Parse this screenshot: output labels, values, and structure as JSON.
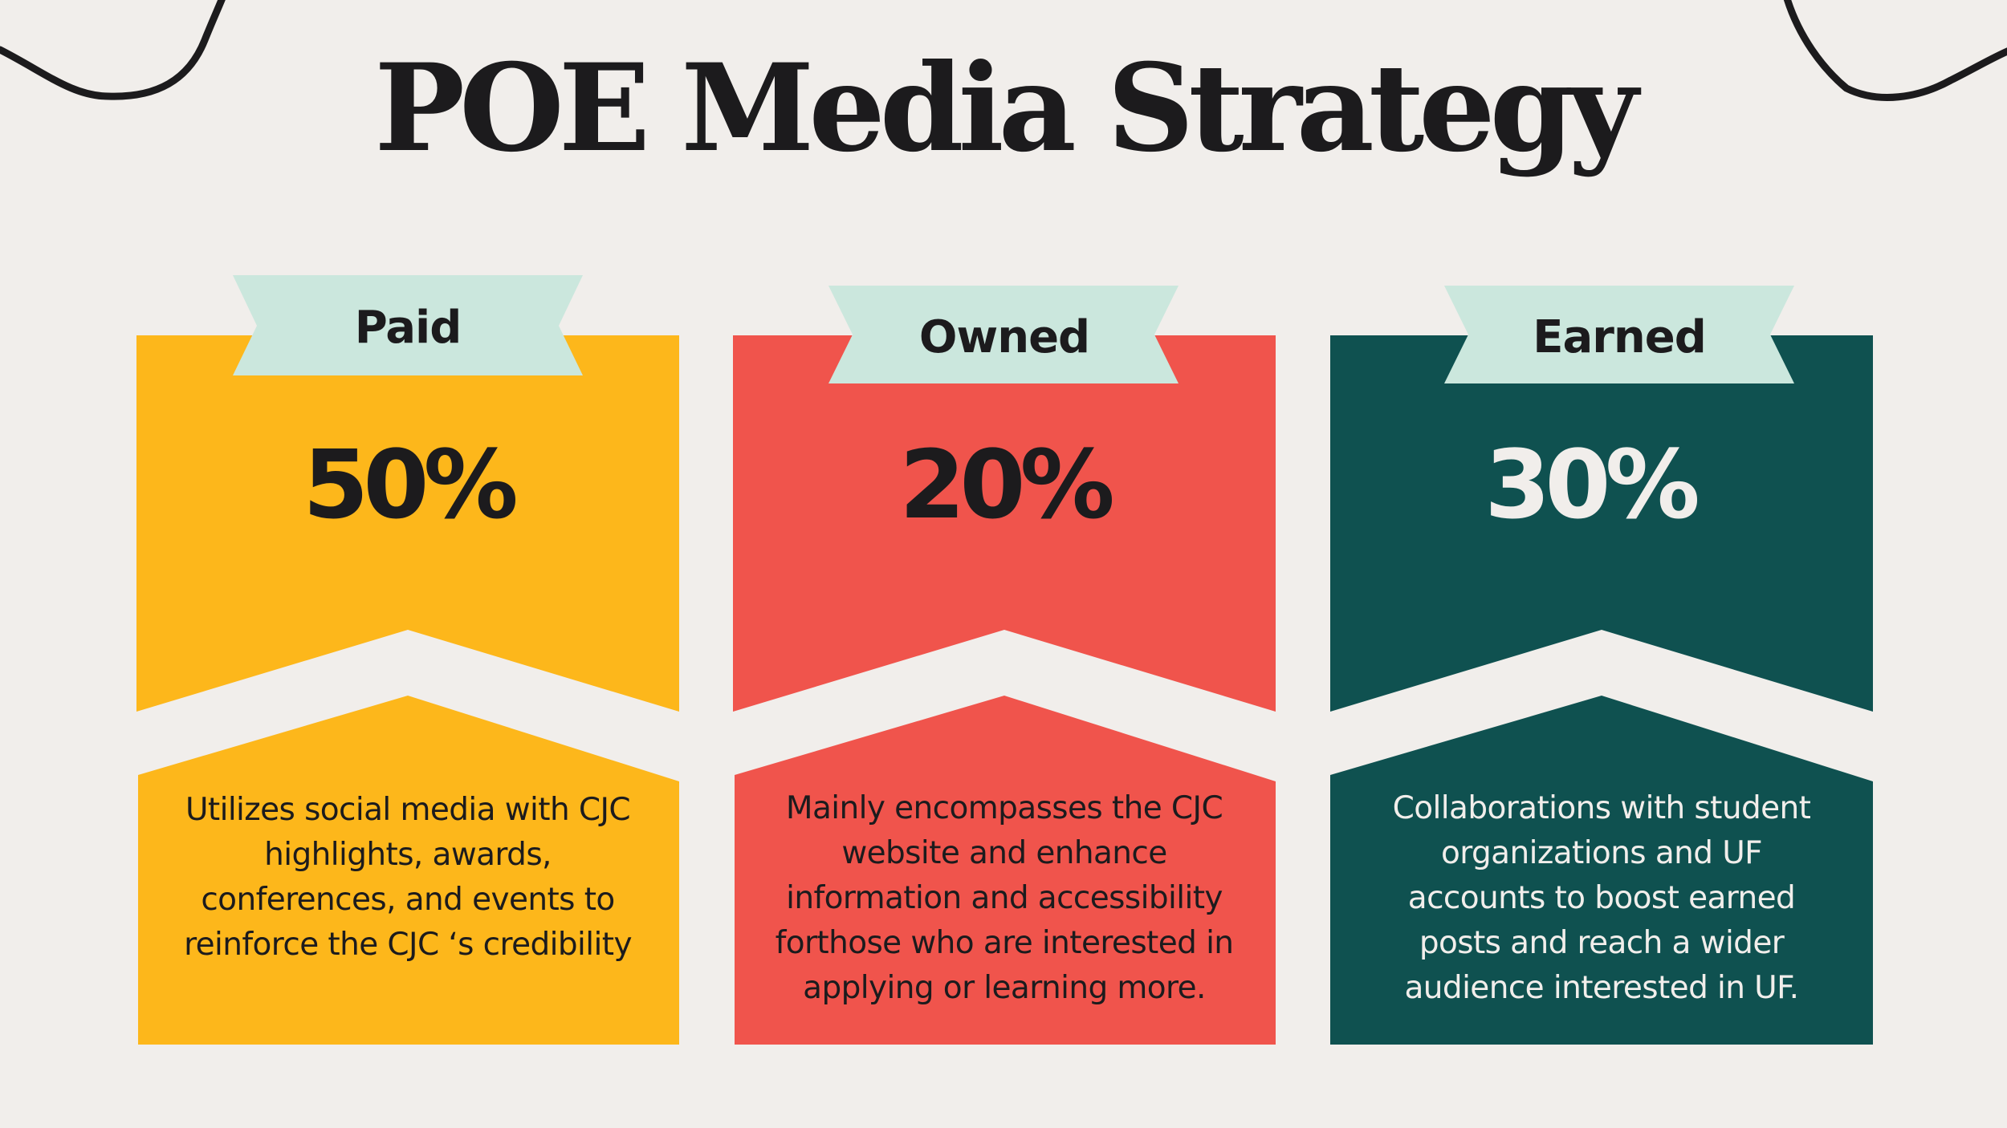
{
  "page": {
    "title": "POE Media Strategy",
    "background": "#f1eeeb"
  },
  "cards": [
    {
      "label": "Paid",
      "percent": "50%",
      "description": "Utilizes social media with CJC highlights, awards, conferences, and events to reinforce the CJC ‘s credibility",
      "color": "#fdb71b",
      "text_color": "#1c1b1d"
    },
    {
      "label": "Owned",
      "percent": "20%",
      "description": "Mainly encompasses the CJC website and enhance information and accessibility forthose who are interested in applying or learning more.",
      "color": "#f0544c",
      "text_color": "#1c1b1d"
    },
    {
      "label": "Earned",
      "percent": "30%",
      "description": "Collaborations with student organizations and UF accounts to boost earned posts and reach a wider audience interested in UF.",
      "color": "#0f5150",
      "text_color": "#f1eeeb"
    }
  ],
  "colors": {
    "ribbon": "#cbe7dd",
    "title": "#1c1b1d",
    "decoration": "#1c1b1d"
  }
}
